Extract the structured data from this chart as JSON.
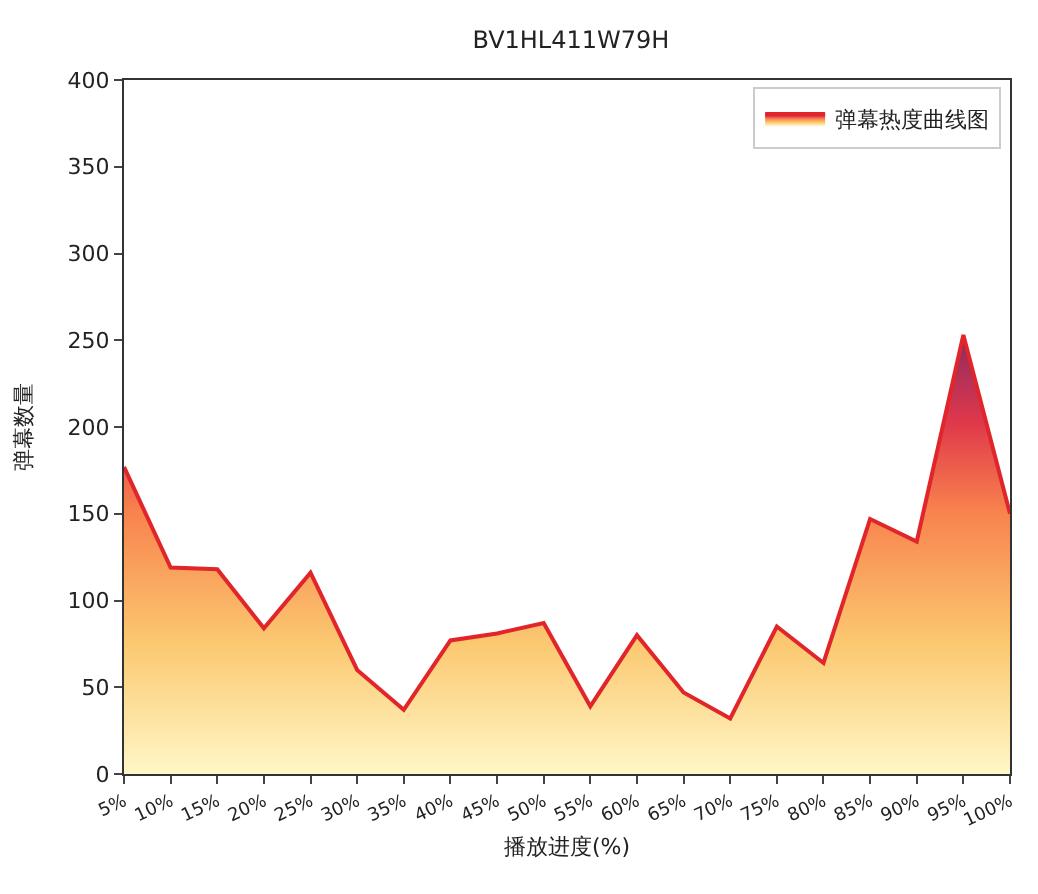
{
  "chart_data": {
    "type": "area",
    "title": "BV1HL411W79H",
    "xlabel": "播放进度(%)",
    "ylabel": "弹幕数量",
    "categories": [
      "5%",
      "10%",
      "15%",
      "20%",
      "25%",
      "30%",
      "35%",
      "40%",
      "45%",
      "50%",
      "55%",
      "60%",
      "65%",
      "70%",
      "75%",
      "80%",
      "85%",
      "90%",
      "95%",
      "100%"
    ],
    "series": [
      {
        "name": "弹幕热度曲线图",
        "color": "#e0262b",
        "values": [
          177,
          119,
          118,
          84,
          116,
          60,
          37,
          77,
          81,
          87,
          39,
          80,
          47,
          32,
          85,
          64,
          147,
          134,
          253,
          150
        ]
      }
    ],
    "ylim": [
      0,
      400
    ],
    "yticks": [
      0,
      50,
      100,
      150,
      200,
      250,
      300,
      350,
      400
    ],
    "legend": "top right"
  }
}
